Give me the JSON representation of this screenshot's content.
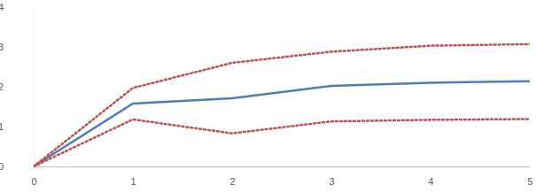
{
  "chart_data": {
    "type": "line",
    "x": [
      0,
      1,
      2,
      3,
      4,
      5
    ],
    "xlim": [
      0,
      5
    ],
    "xticks": [
      0,
      1,
      2,
      3,
      4,
      5
    ],
    "ylim": [
      0,
      4
    ],
    "yticks": [
      0,
      1,
      2,
      3,
      4
    ],
    "grid": false,
    "series": [
      {
        "color": "#4a7ebb",
        "line_style": "solid",
        "values": [
          0,
          1.58,
          1.71,
          2.02,
          2.1,
          2.14
        ]
      },
      {
        "color": "#c0504d",
        "line_style": "dotted",
        "values": [
          0,
          1.97,
          2.6,
          2.88,
          3.03,
          3.07
        ]
      },
      {
        "color": "#c0504d",
        "line_style": "dotted",
        "values": [
          0,
          1.18,
          0.83,
          1.13,
          1.17,
          1.19
        ]
      }
    ]
  }
}
